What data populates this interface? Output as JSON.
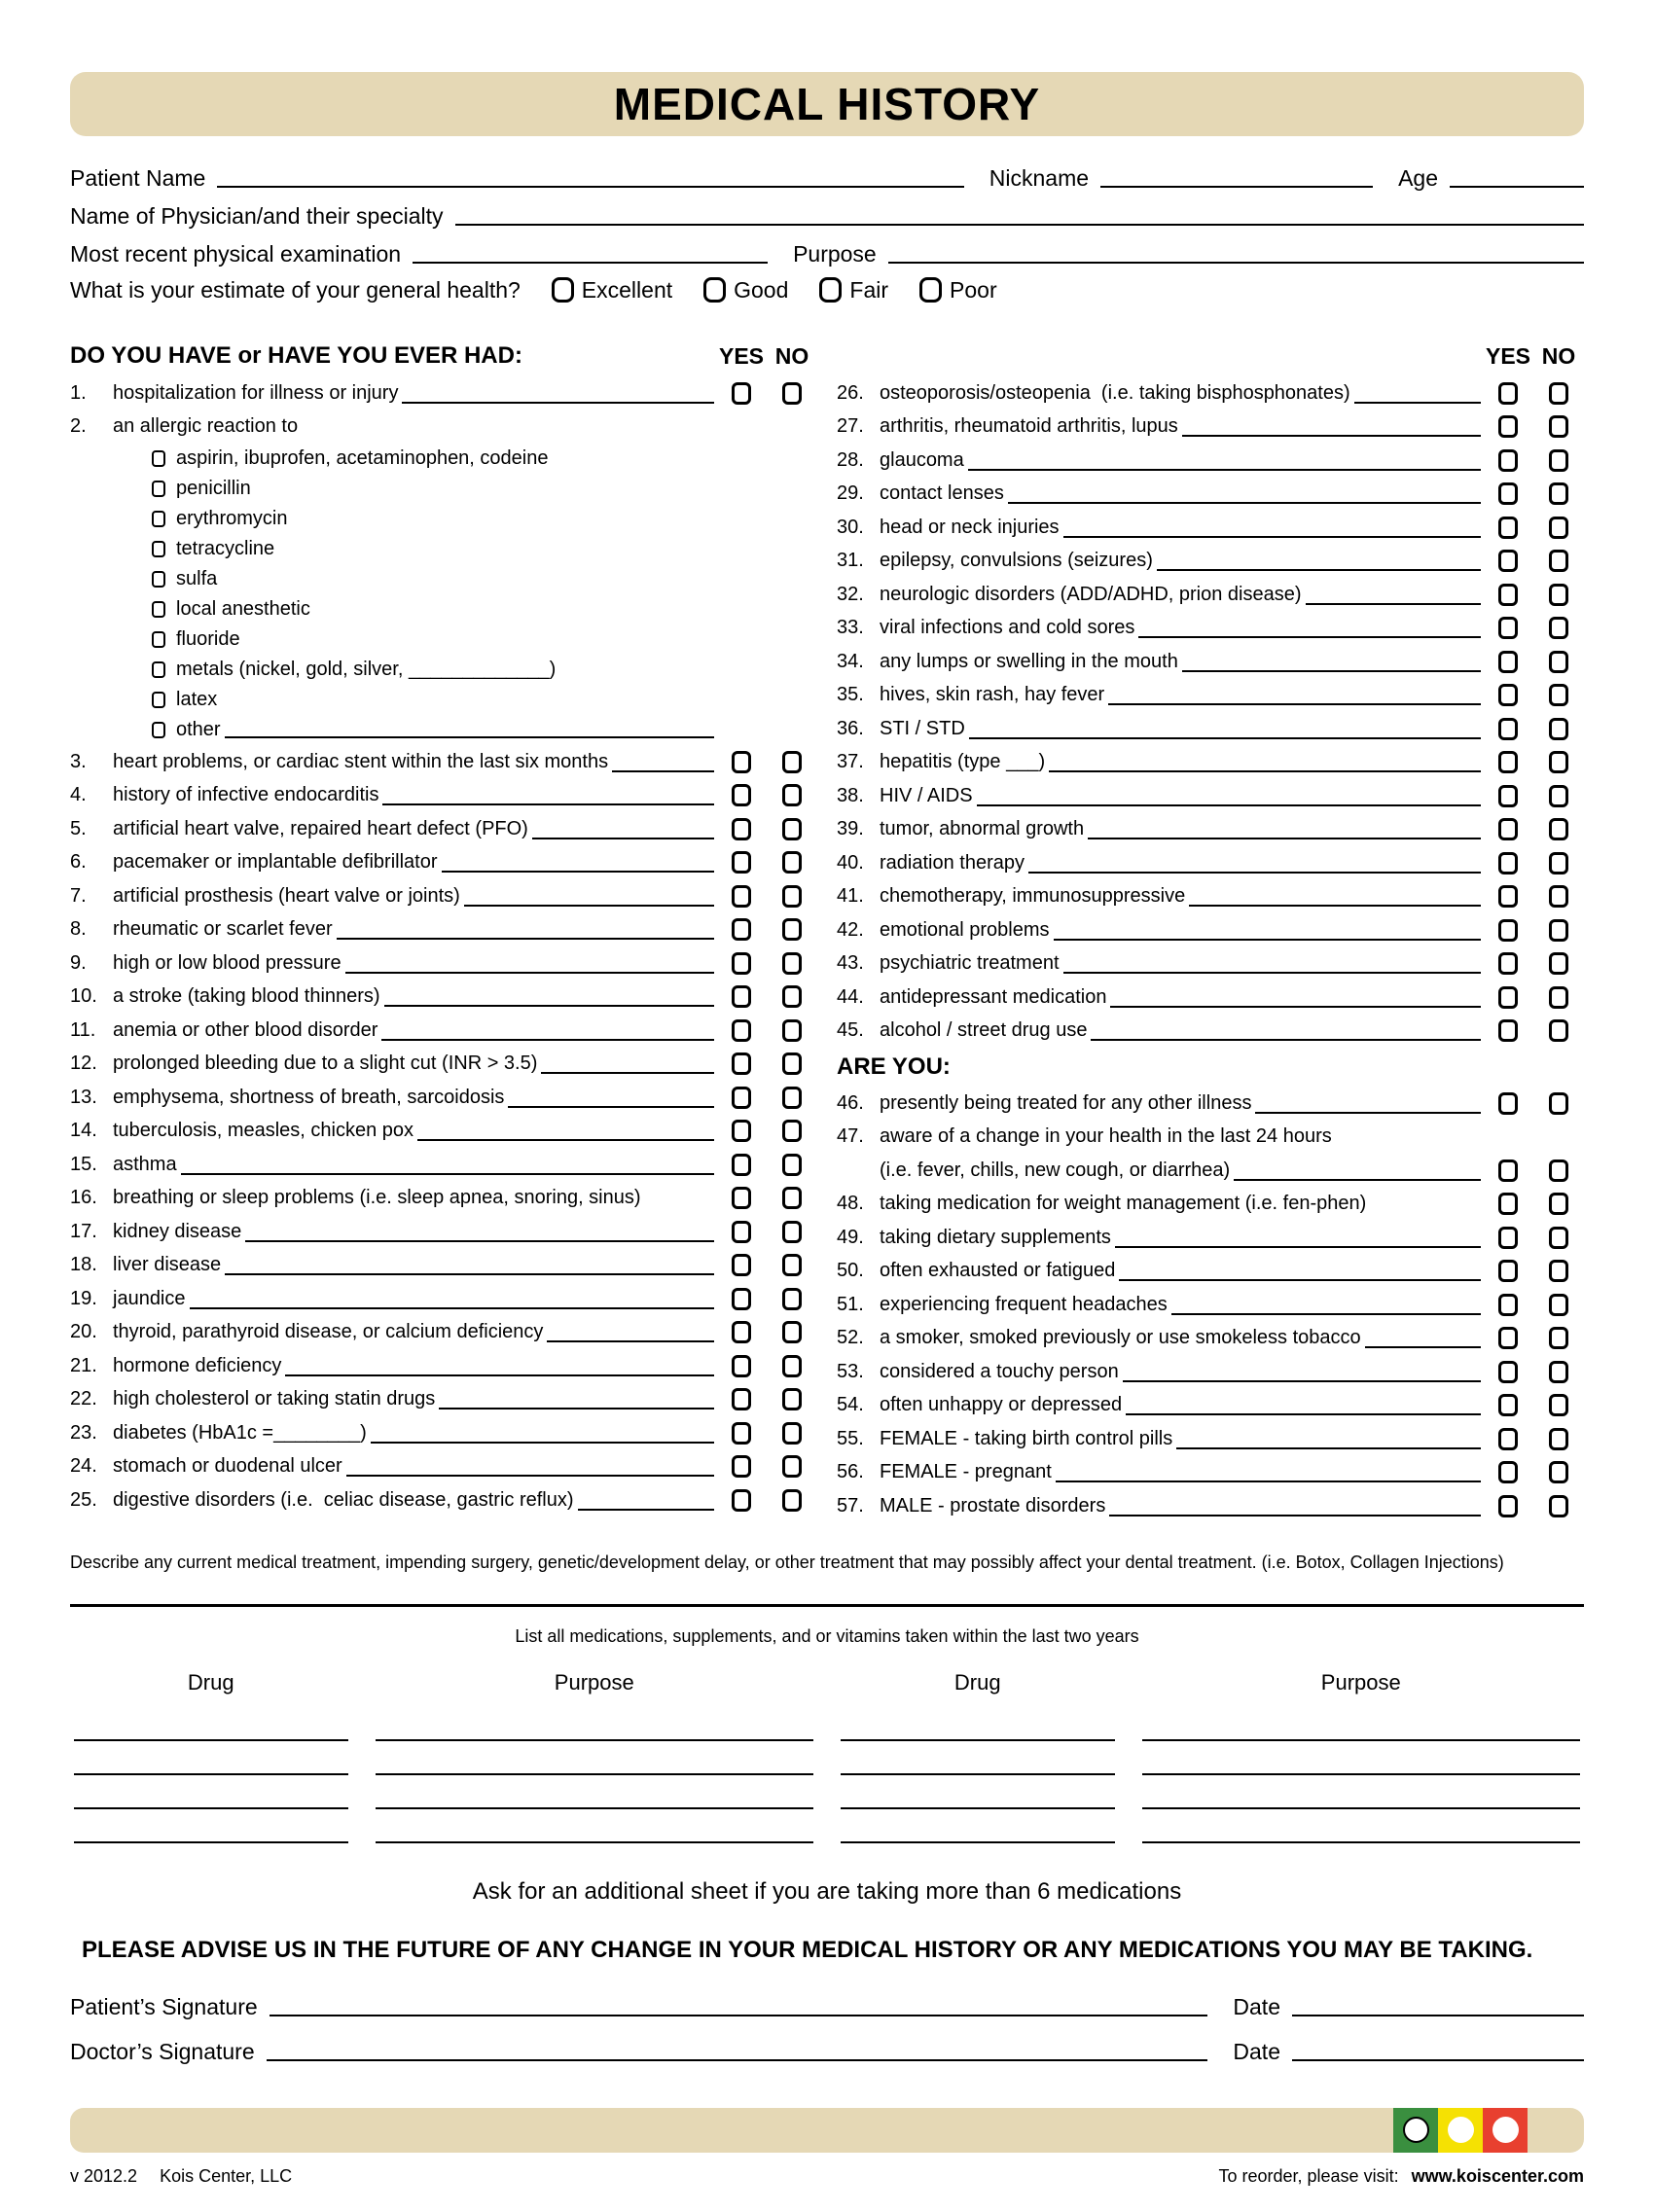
{
  "title": "MEDICAL HISTORY",
  "header_fields": {
    "patient_name": "Patient Name",
    "nickname": "Nickname",
    "age": "Age",
    "physician": "Name of Physician/and their specialty",
    "physical_exam": "Most recent physical examination",
    "purpose": "Purpose",
    "general_health_q": "What is your estimate of your general health?",
    "health_options": [
      "Excellent",
      "Good",
      "Fair",
      "Poor"
    ]
  },
  "questions": {
    "left_header": "DO YOU HAVE or HAVE YOU EVER HAD:",
    "yes_label": "YES",
    "no_label": "NO",
    "left_rows": [
      {
        "num": "1.",
        "text": "hospitalization for illness or injury",
        "line": true,
        "boxes": true
      },
      {
        "num": "2.",
        "text": "an allergic reaction to"
      },
      {
        "sub": true,
        "text": "aspirin, ibuprofen, acetaminophen, codeine"
      },
      {
        "sub": true,
        "text": "penicillin"
      },
      {
        "sub": true,
        "text": "erythromycin"
      },
      {
        "sub": true,
        "text": "tetracycline"
      },
      {
        "sub": true,
        "text": "sulfa"
      },
      {
        "sub": true,
        "text": "local anesthetic"
      },
      {
        "sub": true,
        "text": "fluoride"
      },
      {
        "sub": true,
        "text": "metals (nickel, gold, silver, _____________)"
      },
      {
        "sub": true,
        "text": "latex"
      },
      {
        "sub": true,
        "text": "other",
        "line": true
      },
      {
        "num": "3.",
        "text": "heart problems, or cardiac stent within the last six months",
        "line": true,
        "boxes": true
      },
      {
        "num": "4.",
        "text": "history of infective endocarditis",
        "line": true,
        "boxes": true
      },
      {
        "num": "5.",
        "text": "artificial heart valve, repaired heart defect (PFO)",
        "line": true,
        "boxes": true
      },
      {
        "num": "6.",
        "text": "pacemaker or implantable defibrillator",
        "line": true,
        "boxes": true
      },
      {
        "num": "7.",
        "text": "artificial prosthesis (heart valve or joints)",
        "line": true,
        "boxes": true
      },
      {
        "num": "8.",
        "text": "rheumatic or scarlet fever",
        "line": true,
        "boxes": true
      },
      {
        "num": "9.",
        "text": "high or low blood pressure",
        "line": true,
        "boxes": true
      },
      {
        "num": "10.",
        "text": "a stroke (taking blood thinners)",
        "line": true,
        "boxes": true
      },
      {
        "num": "11.",
        "text": "anemia or other blood disorder",
        "line": true,
        "boxes": true
      },
      {
        "num": "12.",
        "text": "prolonged bleeding due to a slight cut (INR > 3.5)",
        "line": true,
        "boxes": true
      },
      {
        "num": "13.",
        "text": "emphysema, shortness of breath, sarcoidosis",
        "line": true,
        "boxes": true
      },
      {
        "num": "14.",
        "text": "tuberculosis, measles, chicken pox",
        "line": true,
        "boxes": true
      },
      {
        "num": "15.",
        "text": "asthma",
        "line": true,
        "boxes": true
      },
      {
        "num": "16.",
        "text": "breathing or sleep problems (i.e. sleep apnea, snoring, sinus)",
        "boxes": true
      },
      {
        "num": "17.",
        "text": "kidney disease",
        "line": true,
        "boxes": true
      },
      {
        "num": "18.",
        "text": "liver disease",
        "line": true,
        "boxes": true
      },
      {
        "num": "19.",
        "text": "jaundice",
        "line": true,
        "boxes": true
      },
      {
        "num": "20.",
        "text": "thyroid, parathyroid disease, or calcium deficiency",
        "line": true,
        "boxes": true
      },
      {
        "num": "21.",
        "text": "hormone deficiency",
        "line": true,
        "boxes": true
      },
      {
        "num": "22.",
        "text": "high cholesterol or taking statin drugs",
        "line": true,
        "boxes": true
      },
      {
        "num": "23.",
        "text": "diabetes (HbA1c =________)",
        "line": true,
        "boxes": true
      },
      {
        "num": "24.",
        "text": "stomach or duodenal ulcer",
        "line": true,
        "boxes": true
      },
      {
        "num": "25.",
        "text": "digestive disorders (i.e.  celiac disease, gastric reflux)",
        "line": true,
        "boxes": true
      }
    ],
    "right_rows": [
      {
        "num": "26.",
        "text": "osteoporosis/osteopenia  (i.e. taking bisphosphonates)",
        "line": true,
        "boxes": true
      },
      {
        "num": "27.",
        "text": "arthritis, rheumatoid arthritis, lupus",
        "line": true,
        "boxes": true
      },
      {
        "num": "28.",
        "text": "glaucoma",
        "line": true,
        "boxes": true
      },
      {
        "num": "29.",
        "text": "contact lenses",
        "line": true,
        "boxes": true
      },
      {
        "num": "30.",
        "text": "head or neck injuries",
        "line": true,
        "boxes": true
      },
      {
        "num": "31.",
        "text": "epilepsy, convulsions (seizures)",
        "line": true,
        "boxes": true
      },
      {
        "num": "32.",
        "text": "neurologic disorders (ADD/ADHD, prion disease)",
        "line": true,
        "boxes": true
      },
      {
        "num": "33.",
        "text": "viral infections and cold sores",
        "line": true,
        "boxes": true
      },
      {
        "num": "34.",
        "text": "any lumps or swelling in the mouth",
        "line": true,
        "boxes": true
      },
      {
        "num": "35.",
        "text": "hives, skin rash, hay fever",
        "line": true,
        "boxes": true
      },
      {
        "num": "36.",
        "text": "STI / STD",
        "line": true,
        "boxes": true
      },
      {
        "num": "37.",
        "text": "hepatitis (type ___)",
        "line": true,
        "boxes": true
      },
      {
        "num": "38.",
        "text": "HIV / AIDS",
        "line": true,
        "boxes": true
      },
      {
        "num": "39.",
        "text": "tumor, abnormal growth",
        "line": true,
        "boxes": true
      },
      {
        "num": "40.",
        "text": "radiation therapy",
        "line": true,
        "boxes": true
      },
      {
        "num": "41.",
        "text": "chemotherapy, immunosuppressive",
        "line": true,
        "boxes": true
      },
      {
        "num": "42.",
        "text": "emotional problems",
        "line": true,
        "boxes": true
      },
      {
        "num": "43.",
        "text": "psychiatric treatment",
        "line": true,
        "boxes": true
      },
      {
        "num": "44.",
        "text": "antidepressant medication",
        "line": true,
        "boxes": true
      },
      {
        "num": "45.",
        "text": "alcohol / street drug use",
        "line": true,
        "boxes": true
      },
      {
        "heading": true,
        "text": "ARE YOU:"
      },
      {
        "num": "46.",
        "text": "presently being treated for any other illness",
        "line": true,
        "boxes": true
      },
      {
        "num": "47.",
        "text": "aware of a change in your health in the last 24 hours"
      },
      {
        "text": "(i.e. fever, chills, new cough, or diarrhea)",
        "line": true,
        "boxes": true
      },
      {
        "num": "48.",
        "text": "taking medication for weight management (i.e. fen-phen)",
        "boxes": true
      },
      {
        "num": "49.",
        "text": "taking dietary supplements",
        "line": true,
        "boxes": true
      },
      {
        "num": "50.",
        "text": "often exhausted or fatigued",
        "line": true,
        "boxes": true
      },
      {
        "num": "51.",
        "text": "experiencing frequent headaches",
        "line": true,
        "boxes": true
      },
      {
        "num": "52.",
        "text": "a smoker, smoked previously or use smokeless tobacco",
        "line": true,
        "boxes": true
      },
      {
        "num": "53.",
        "text": "considered a touchy person",
        "line": true,
        "boxes": true
      },
      {
        "num": "54.",
        "text": "often unhappy or depressed",
        "line": true,
        "boxes": true
      },
      {
        "num": "55.",
        "text": "FEMALE - taking birth control pills",
        "line": true,
        "boxes": true
      },
      {
        "num": "56.",
        "text": "FEMALE - pregnant",
        "line": true,
        "boxes": true
      },
      {
        "num": "57.",
        "text": "MALE - prostate disorders",
        "line": true,
        "boxes": true
      }
    ]
  },
  "treatment_note": "Describe any current medical treatment, impending surgery, genetic/development delay, or other treatment that may possibly affect your dental treatment. (i.e. Botox, Collagen Injections)",
  "medications": {
    "instruction": "List all medications, supplements, and or vitamins taken within the last two years",
    "columns": [
      "Drug",
      "Purpose",
      "Drug",
      "Purpose"
    ],
    "additional_note": "Ask for an additional sheet if you are taking more than 6 medications"
  },
  "advisory": "PLEASE ADVISE US IN THE FUTURE OF ANY CHANGE IN YOUR MEDICAL HISTORY OR ANY MEDICATIONS YOU MAY BE TAKING.",
  "signatures": {
    "patient": "Patient’s Signature",
    "doctor": "Doctor’s Signature",
    "date": "Date"
  },
  "footer": {
    "version": "v 2012.2",
    "company": "Kois Center, LLC",
    "reorder": "To reorder, please visit:",
    "url": "www.koiscenter.com"
  }
}
